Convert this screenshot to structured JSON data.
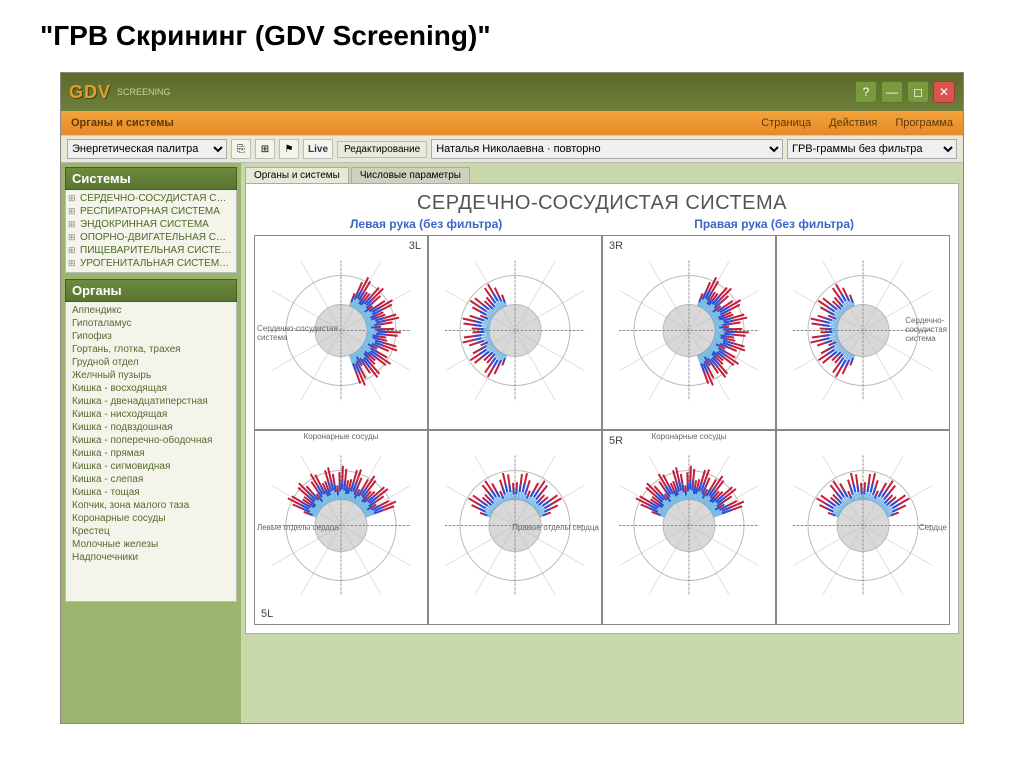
{
  "page_heading": "\"ГРВ Скрининг (GDV Screening)\"",
  "titlebar": {
    "logo": "GDV",
    "logo_sub": "SCREENING"
  },
  "win_buttons": {
    "help": "?",
    "min": "—",
    "max": "◻",
    "close": "✕"
  },
  "menubar": {
    "section": "Органы и системы",
    "items": [
      "Страница",
      "Действия",
      "Программа"
    ]
  },
  "toolbar": {
    "dropdown1": "Энергетическая палитра",
    "live": "Live",
    "edit_btn": "Редактирование",
    "patient": "Наталья Николаевна · повторно",
    "filter": "ГРВ-граммы без фильтра"
  },
  "sidebar": {
    "systems_title": "Системы",
    "systems": [
      "СЕРДЕЧНО-СОСУДИСТАЯ С…",
      "РЕСПИРАТОРНАЯ СИСТЕМА",
      "ЭНДОКРИННАЯ СИСТЕМА",
      "ОПОРНО-ДВИГАТЕЛЬНАЯ С…",
      "ПИЩЕВАРИТЕЛЬНАЯ СИСТЕ…",
      "УРОГЕНИТАЛЬНАЯ СИСТЕМ…"
    ],
    "organs_title": "Органы",
    "organs": [
      "Аппендикс",
      "Гипоталамус",
      "Гипофиз",
      "Гортань, глотка, трахея",
      "Грудной отдел",
      "Желчный пузырь",
      "Кишка - восходящая",
      "Кишка - двенадцатиперстная",
      "Кишка - нисходящая",
      "Кишка - подвздошная",
      "Кишка - поперечно-ободочная",
      "Кишка - прямая",
      "Кишка - сигмовидная",
      "Кишка - слепая",
      "Кишка - тощая",
      "Копчик, зона малого таза",
      "Коронарные сосуды",
      "Крестец",
      "Молочные железы",
      "Надпочечники"
    ]
  },
  "tabs": {
    "active": "Органы и системы",
    "inactive": "Числовые параметры"
  },
  "chart": {
    "title": "СЕРДЕЧНО-СОСУДИСТАЯ СИСТЕМА",
    "left_label": "Левая рука (без фильтра)",
    "right_label": "Правая рука (без фильтра)",
    "cells": [
      {
        "id": "3L",
        "pos": "tr"
      },
      {
        "id": "",
        "pos": ""
      },
      {
        "id": "3R",
        "pos": "tl"
      },
      {
        "id": "",
        "pos": ""
      },
      {
        "id": "5L",
        "pos": "bl"
      },
      {
        "id": "",
        "pos": ""
      },
      {
        "id": "5R",
        "pos": "tl"
      },
      {
        "id": "",
        "pos": ""
      }
    ],
    "side_text_left": "Сердечно-сосудистая\nсистема",
    "side_text_right": "Сердечно-\nсосудистая\nсистема",
    "row2_top_label": "Коронарные сосуды",
    "row2_mid_left": "Левые отделы сердца",
    "row2_mid_right": "Правые отделы сердца",
    "row2_side_right": "Сердце",
    "colors": {
      "outer": "#d8d8d8",
      "inner": "#ffffff",
      "guide": "#bbbbbb",
      "axis": "#888",
      "burst_outer": "#c41e3a",
      "burst_mid": "#2a4fd8",
      "burst_core": "#7ec7e8"
    }
  }
}
